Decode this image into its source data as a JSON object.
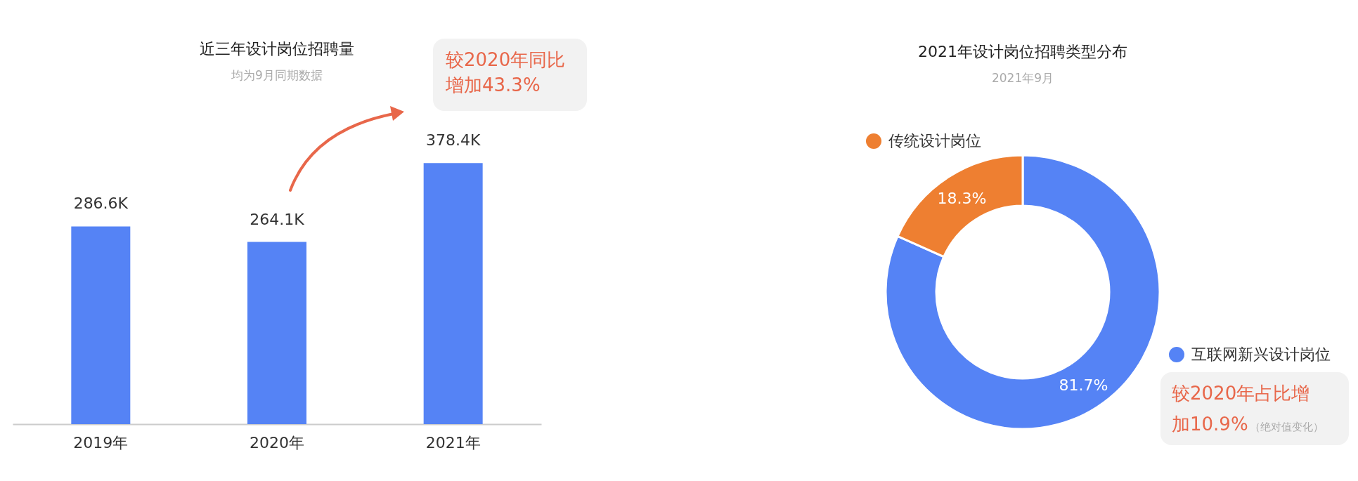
{
  "chart_data": [
    {
      "type": "bar",
      "title": "近三年设计岗位招聘量",
      "subtitle": "均为9月同期数据",
      "categories": [
        "2019年",
        "2020年",
        "2021年"
      ],
      "values": [
        286.6,
        264.1,
        378.4
      ],
      "value_labels": [
        "286.6K",
        "264.1K",
        "378.4K"
      ],
      "color": "#5583f5",
      "annotations": [
        "较2020年同比增加43.3%"
      ]
    },
    {
      "type": "donut",
      "title": "2021年设计岗位招聘类型分布",
      "subtitle": "2021年9月",
      "categories": [
        "互联网新兴设计岗位",
        "传统设计岗位"
      ],
      "values": [
        81.7,
        18.3
      ],
      "colors": [
        "#5583f5",
        "#ee7f31"
      ],
      "value_labels": [
        "81.7%",
        "18.3%"
      ],
      "legend": "top right",
      "annotations": [
        "较2020年占比增加10.9%",
        "（绝对值变化）"
      ]
    }
  ]
}
